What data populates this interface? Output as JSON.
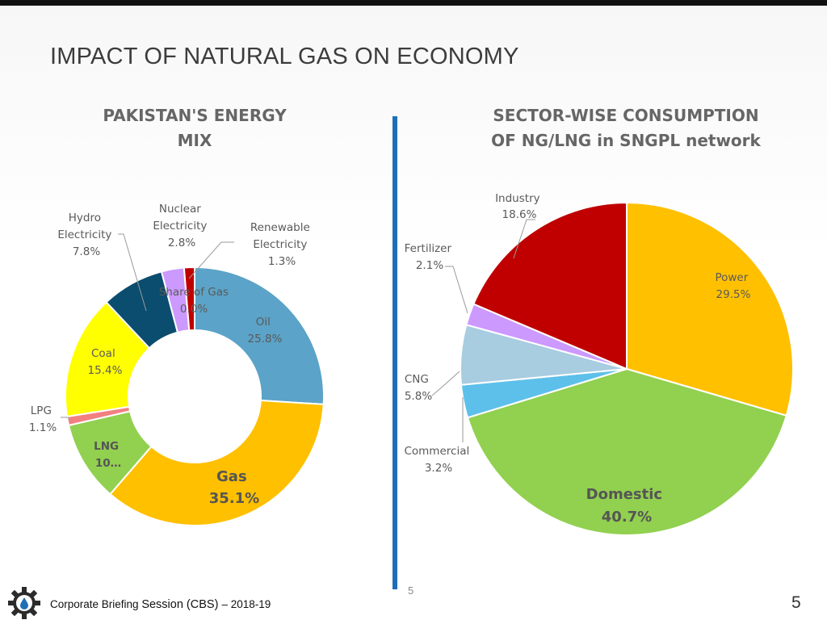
{
  "slide": {
    "title": "IMPACT OF NATURAL GAS ON ECONOMY",
    "center_page_number": "5",
    "page_number": "5",
    "footer": {
      "prefix": "Corporate Briefing ",
      "middle": "Session (CBS) ",
      "suffix": "– 2018-19"
    },
    "divider_color": "#1f6fb5"
  },
  "chart_data": [
    {
      "type": "pie",
      "variant": "donut",
      "title_lines": [
        "PAKISTAN'S ENERGY",
        "MIX"
      ],
      "slices": [
        {
          "name": "Oil",
          "value": 25.8,
          "label": "25.8%",
          "color": "#5ba3c8"
        },
        {
          "name": "Gas",
          "value": 35.1,
          "label": "35.1%",
          "color": "#ffc000"
        },
        {
          "name": "LNG",
          "value": 10.0,
          "label": "10…",
          "color": "#92d050"
        },
        {
          "name": "LPG",
          "value": 1.1,
          "label": "1.1%",
          "color": "#f28080"
        },
        {
          "name": "Coal",
          "value": 15.4,
          "label": "15.4%",
          "color": "#ffff00"
        },
        {
          "name": "Hydro Electricity",
          "value": 7.8,
          "label": "7.8%",
          "color": "#0b4d6e"
        },
        {
          "name": "Nuclear Electricity",
          "value": 2.8,
          "label": "2.8%",
          "color": "#cc99ff"
        },
        {
          "name": "Renewable Electricity",
          "value": 1.3,
          "label": "1.3%",
          "color": "#c00000"
        },
        {
          "name": "Share of Gas",
          "value": 0.0,
          "label": "0.0%",
          "color": "#2e75b6"
        }
      ],
      "label_text": {
        "oil": [
          "Oil",
          "25.8%"
        ],
        "gas": [
          "Gas",
          "35.1%"
        ],
        "lng": [
          "LNG",
          "10…"
        ],
        "lpg": [
          "LPG",
          "1.1%"
        ],
        "coal": [
          "Coal",
          "15.4%"
        ],
        "hydro": [
          "Hydro",
          "Electricity",
          "7.8%"
        ],
        "nuclear": [
          "Nuclear",
          "Electricity",
          "2.8%"
        ],
        "renewable": [
          "Renewable",
          "Electricity",
          "1.3%"
        ],
        "share_of_gas": [
          "Share of Gas",
          "0.0%"
        ]
      },
      "legend": "none"
    },
    {
      "type": "pie",
      "title_lines": [
        "SECTOR-WISE CONSUMPTION",
        "OF NG/LNG in SNGPL network"
      ],
      "slices": [
        {
          "name": "Power",
          "value": 29.5,
          "label": "29.5%",
          "color": "#ffc000"
        },
        {
          "name": "Domestic",
          "value": 40.7,
          "label": "40.7%",
          "color": "#92d050"
        },
        {
          "name": "Commercial",
          "value": 3.2,
          "label": "3.2%",
          "color": "#5dc0ea"
        },
        {
          "name": "CNG",
          "value": 5.8,
          "label": "5.8%",
          "color": "#a8cce0"
        },
        {
          "name": "Fertilizer",
          "value": 2.1,
          "label": "2.1%",
          "color": "#cc99ff"
        },
        {
          "name": "Industry",
          "value": 18.6,
          "label": "18.6%",
          "color": "#c00000"
        }
      ],
      "label_text": {
        "power": [
          "Power",
          "29.5%"
        ],
        "domestic": [
          "Domestic",
          "40.7%"
        ],
        "commercial": [
          "Commercial",
          "3.2%"
        ],
        "cng": [
          "CNG",
          "5.8%"
        ],
        "fertilizer": [
          "Fertilizer",
          "2.1%"
        ],
        "industry": [
          "Industry",
          "18.6%"
        ]
      },
      "legend": "none"
    }
  ]
}
